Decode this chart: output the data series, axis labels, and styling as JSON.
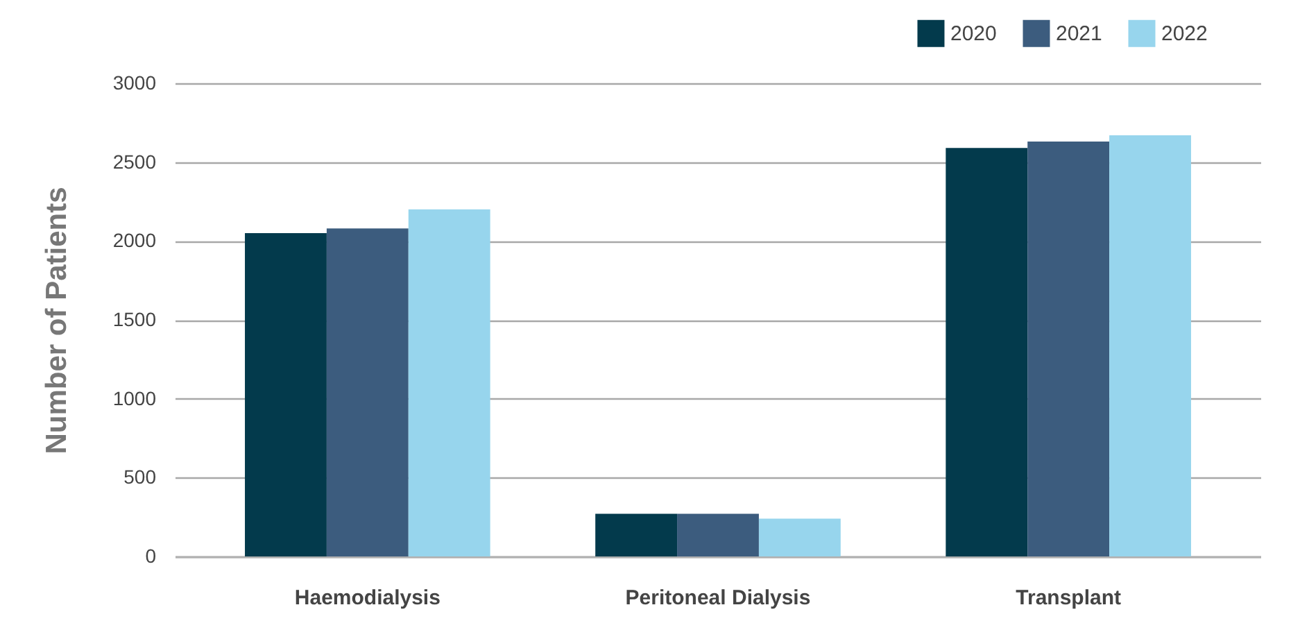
{
  "chart_data": {
    "type": "bar",
    "ylabel": "Number of Patients",
    "categories": [
      "Haemodialysis",
      "Peritoneal Dialysis",
      "Transplant"
    ],
    "series": [
      {
        "name": "2020",
        "color": "#033a4c",
        "values": [
          2050,
          270,
          2590
        ]
      },
      {
        "name": "2021",
        "color": "#3c5c7e",
        "values": [
          2080,
          270,
          2630
        ]
      },
      {
        "name": "2022",
        "color": "#97d5ed",
        "values": [
          2200,
          240,
          2670
        ]
      }
    ],
    "ylim": [
      0,
      3000
    ],
    "yticks": [
      0,
      500,
      1000,
      1500,
      2000,
      2500,
      3000
    ],
    "grid": "y",
    "legend": "top right"
  }
}
